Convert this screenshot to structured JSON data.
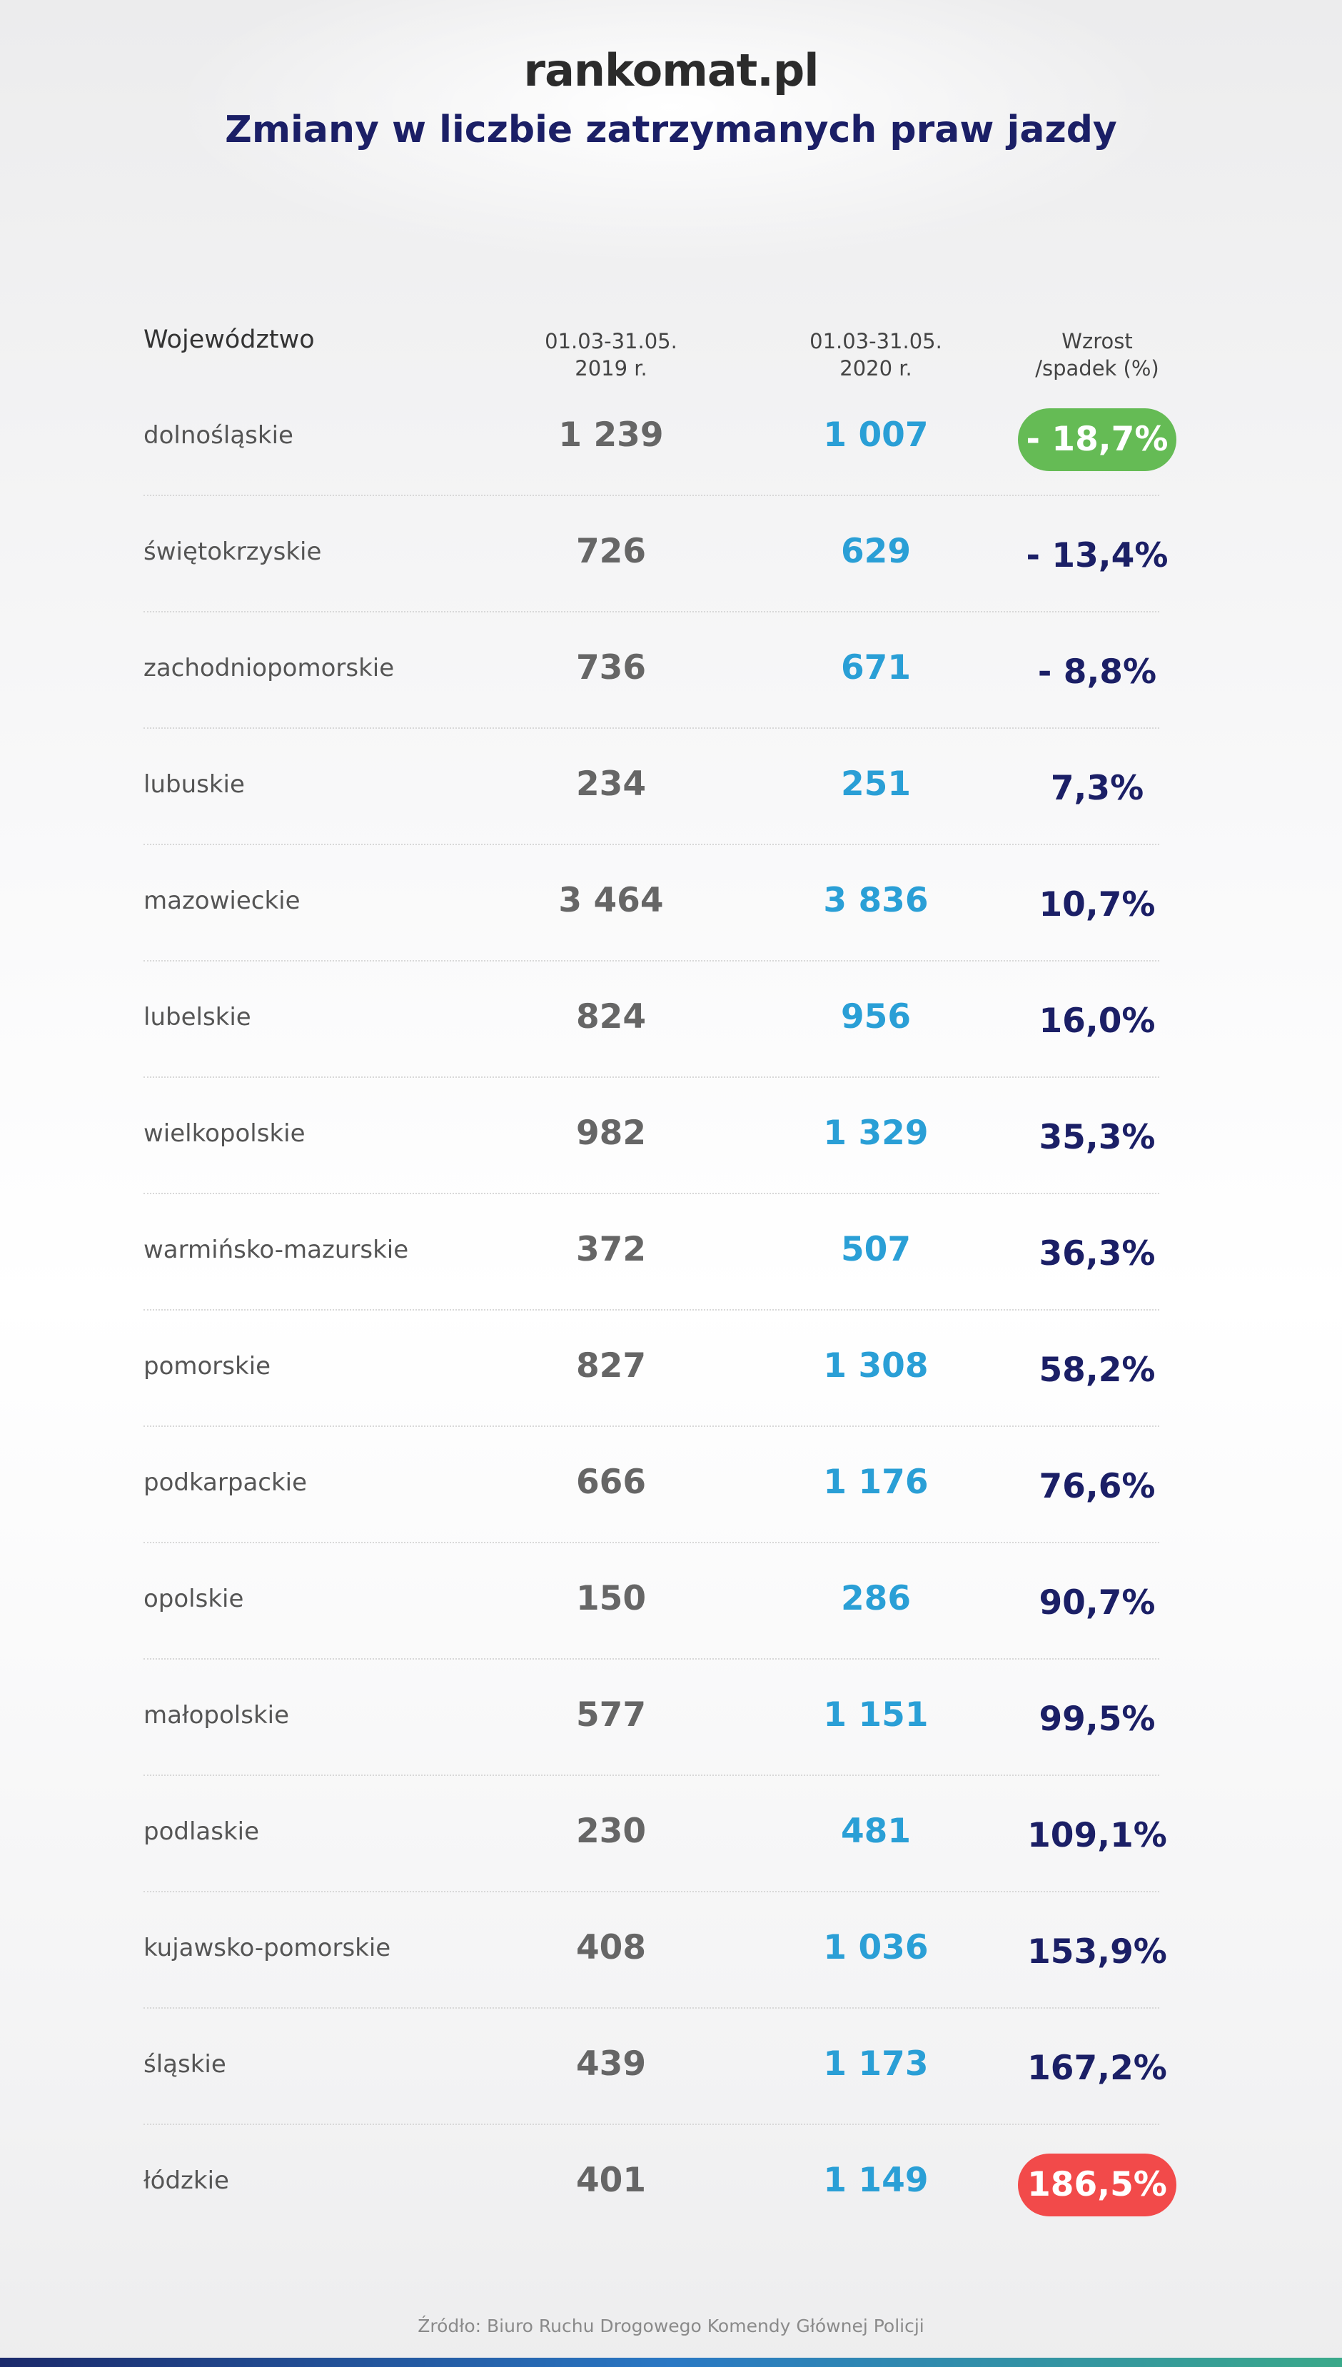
{
  "header": {
    "logo": "rankomat.pl",
    "title": "Zmiany w liczbie zatrzymanych praw jazdy"
  },
  "table": {
    "columns": [
      "Województwo",
      "01.03-31.05.\n2019 r.",
      "01.03-31.05.\n2020 r.",
      "Wzrost\n/spadek (%)"
    ],
    "rows": [
      [
        "dolnośląskie",
        "1 239",
        "1 007",
        "- 18,7%"
      ],
      [
        "świętokrzyskie",
        "726",
        "629",
        "- 13,4%"
      ],
      [
        "zachodniopomorskie",
        "736",
        "671",
        "- 8,8%"
      ],
      [
        "lubuskie",
        "234",
        "251",
        "7,3%"
      ],
      [
        "mazowieckie",
        "3 464",
        "3 836",
        "10,7%"
      ],
      [
        "lubelskie",
        "824",
        "956",
        "16,0%"
      ],
      [
        "wielkopolskie",
        "982",
        "1 329",
        "35,3%"
      ],
      [
        "warmińsko-mazurskie",
        "372",
        "507",
        "36,3%"
      ],
      [
        "pomorskie",
        "827",
        "1 308",
        "58,2%"
      ],
      [
        "podkarpackie",
        "666",
        "1 176",
        "76,6%"
      ],
      [
        "opolskie",
        "150",
        "286",
        "90,7%"
      ],
      [
        "małopolskie",
        "577",
        "1 151",
        "99,5%"
      ],
      [
        "podlaskie",
        "230",
        "481",
        "109,1%"
      ],
      [
        "kujawsko-pomorskie",
        "408",
        "1 036",
        "153,9%"
      ],
      [
        "śląskie",
        "439",
        "1 173",
        "167,2%"
      ],
      [
        "łódzkie",
        "401",
        "1 149",
        "186,5%"
      ]
    ]
  },
  "footer": {
    "source": "Źródło: Biuro Ruchu Drogowego Komendy Głównej Policji"
  }
}
